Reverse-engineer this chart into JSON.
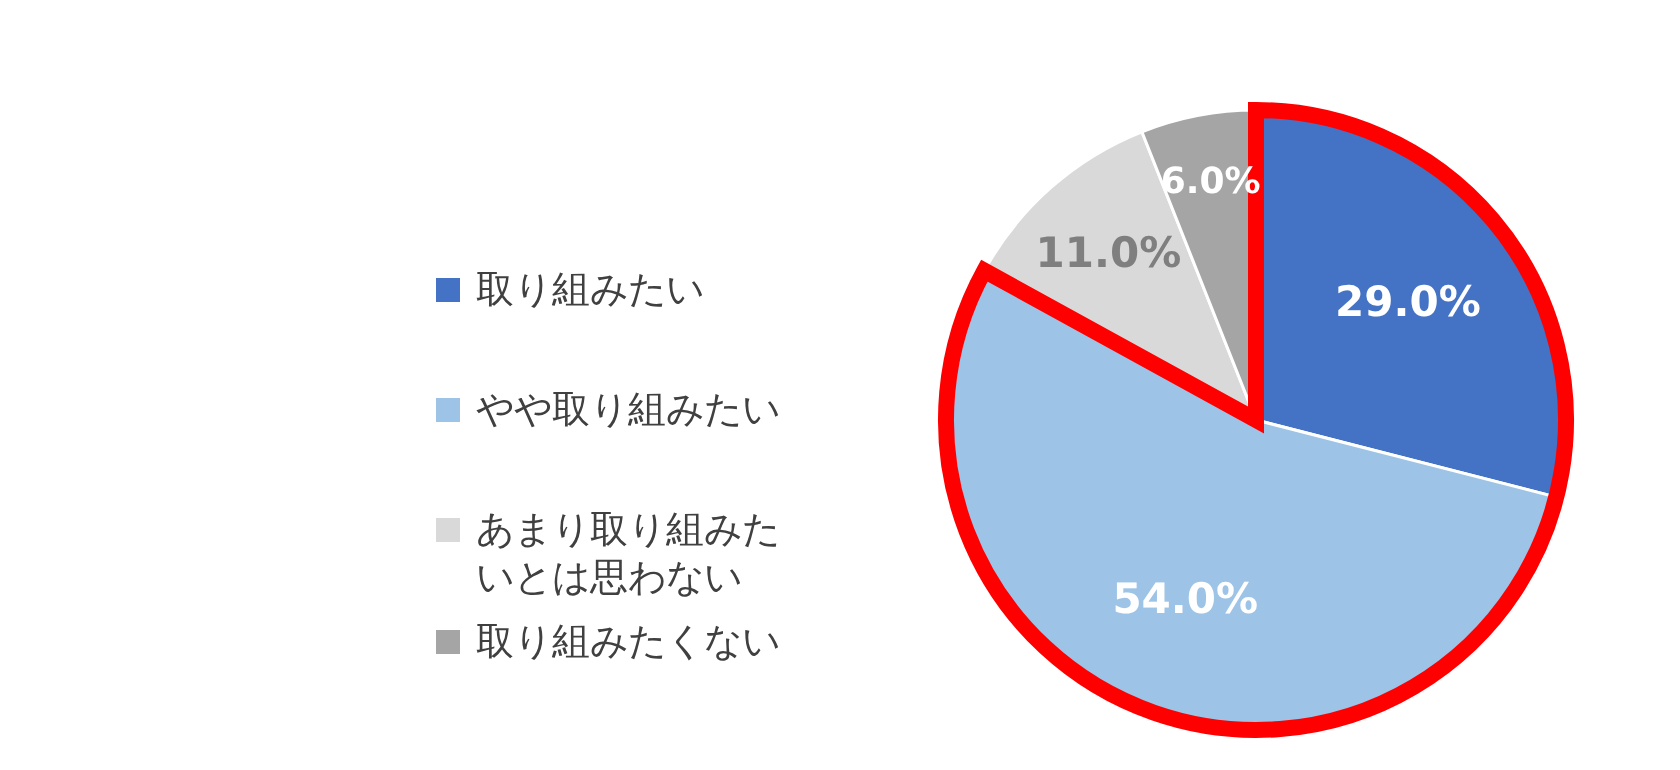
{
  "chart_data": {
    "type": "pie",
    "categories": [
      "取り組みたい",
      "やや取り組みたい",
      "あまり取り組みたいとは思わない",
      "取り組みたくない"
    ],
    "values": [
      29.0,
      54.0,
      11.0,
      6.0
    ],
    "colors": [
      "#4472c4",
      "#9dc3e6",
      "#d9d9d9",
      "#a5a5a5"
    ],
    "value_labels": [
      "29.0%",
      "54.0%",
      "11.0%",
      "6.0%"
    ],
    "legend": "left"
  }
}
